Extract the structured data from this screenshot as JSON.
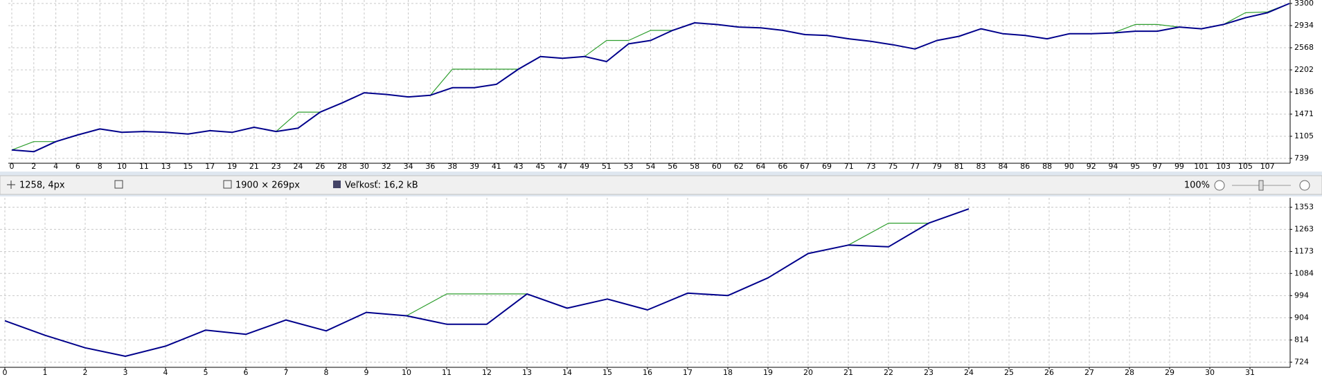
{
  "chart_data": [
    {
      "type": "line",
      "categories": [
        "0",
        "2",
        "4",
        "6",
        "8",
        "10",
        "11",
        "13",
        "15",
        "17",
        "19",
        "21",
        "23",
        "24",
        "26",
        "28",
        "30",
        "32",
        "34",
        "36",
        "38",
        "39",
        "41",
        "43",
        "45",
        "47",
        "49",
        "51",
        "53",
        "54",
        "56",
        "58",
        "60",
        "62",
        "64",
        "66",
        "67",
        "69",
        "71",
        "73",
        "75",
        "77",
        "79",
        "81",
        "83",
        "84",
        "86",
        "88",
        "90",
        "92",
        "94",
        "95",
        "97",
        "99",
        "101",
        "103",
        "105",
        "107",
        null
      ],
      "series": [
        {
          "color": "#2e9e2e",
          "values": [
            878,
            1017,
            1017,
            1128,
            1226,
            1170,
            1184,
            1170,
            1142,
            1198,
            1170,
            1254,
            1184,
            1504,
            1504,
            1657,
            1824,
            1797,
            1755,
            1783,
            2214,
            2214,
            2214,
            2214,
            2423,
            2395,
            2423,
            2688,
            2688,
            2855,
            2855,
            2980,
            2952,
            2910,
            2896,
            2855,
            2785,
            2771,
            2716,
            2674,
            2618,
            2548,
            2688,
            2757,
            2882,
            2799,
            2771,
            2716,
            2799,
            2799,
            2813,
            2952,
            2952,
            2910,
            2882,
            2952,
            3147,
            3160,
            3300
          ]
        },
        {
          "color": "#00008b",
          "values": [
            878,
            850,
            1017,
            1128,
            1226,
            1170,
            1184,
            1170,
            1142,
            1198,
            1170,
            1254,
            1184,
            1240,
            1504,
            1657,
            1824,
            1797,
            1755,
            1783,
            1908,
            1908,
            1964,
            2214,
            2423,
            2395,
            2423,
            2340,
            2632,
            2688,
            2855,
            2980,
            2952,
            2910,
            2896,
            2855,
            2785,
            2771,
            2716,
            2674,
            2618,
            2548,
            2688,
            2757,
            2882,
            2799,
            2771,
            2716,
            2799,
            2799,
            2813,
            2841,
            2841,
            2910,
            2882,
            2952,
            3063,
            3147,
            3300
          ]
        }
      ],
      "ylim": [
        739,
        3300
      ],
      "yticks": [
        739,
        1105,
        1471,
        1836,
        2202,
        2568,
        2934,
        3300
      ],
      "grid": true
    },
    {
      "type": "line",
      "x": [
        0,
        1,
        2,
        3,
        4,
        5,
        6,
        7,
        8,
        9,
        10,
        11,
        12,
        13,
        14,
        15,
        16,
        17,
        18,
        19,
        20,
        21,
        22,
        23,
        24
      ],
      "series": [
        {
          "color": "#2e9e2e",
          "values": [
            892,
            833,
            782,
            748,
            789,
            854,
            837,
            895,
            851,
            926,
            912,
            1001,
            1001,
            1001,
            943,
            980,
            936,
            1004,
            994,
            1066,
            1165,
            1199,
            1288,
            1288,
            1346
          ]
        },
        {
          "color": "#00008b",
          "values": [
            892,
            833,
            782,
            748,
            789,
            854,
            837,
            895,
            851,
            926,
            912,
            878,
            878,
            1001,
            943,
            980,
            936,
            1004,
            994,
            1066,
            1165,
            1199,
            1192,
            1288,
            1346
          ]
        }
      ],
      "xlim": [
        0,
        32
      ],
      "xticks": [
        0,
        1,
        2,
        3,
        4,
        5,
        6,
        7,
        8,
        9,
        10,
        11,
        12,
        13,
        14,
        15,
        16,
        17,
        18,
        19,
        20,
        21,
        22,
        23,
        24,
        25,
        26,
        27,
        28,
        29,
        30,
        31
      ],
      "ylim": [
        724,
        1353
      ],
      "yticks": [
        724,
        814,
        904,
        994,
        1084,
        1173,
        1263,
        1353
      ],
      "grid": true
    }
  ],
  "status_bar": {
    "cursor": "1258, 4px",
    "dimensions": "1900 × 269px",
    "size": "Veľkosť: 16,2 kB",
    "zoom": "100%"
  }
}
